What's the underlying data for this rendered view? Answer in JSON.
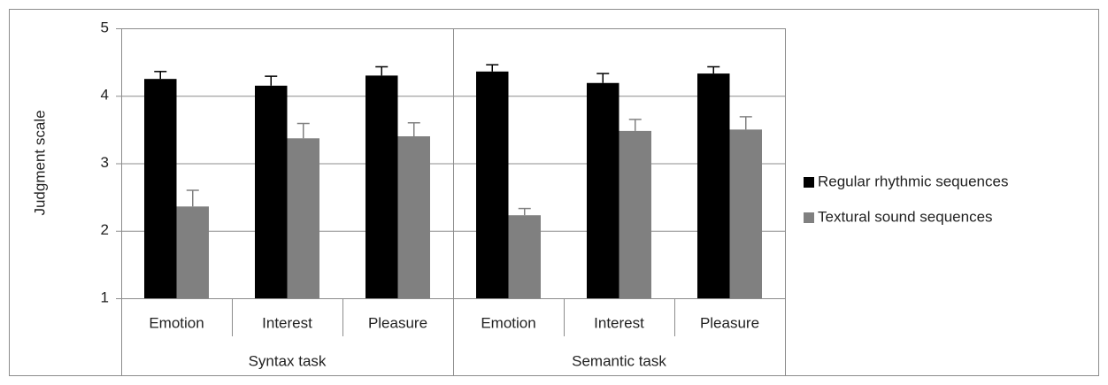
{
  "chart_data": {
    "type": "bar",
    "y_label": "Judgment scale",
    "groups": [
      "Syntax task",
      "Semantic task"
    ],
    "categories": [
      "Emotion",
      "Interest",
      "Pleasure",
      "Emotion",
      "Interest",
      "Pleasure"
    ],
    "series": [
      {
        "name": "Regular rhythmic sequences",
        "color": "#000000",
        "values": [
          4.25,
          4.15,
          4.3,
          4.36,
          4.19,
          4.33
        ],
        "errors": [
          0.11,
          0.14,
          0.13,
          0.1,
          0.14,
          0.1
        ]
      },
      {
        "name": "Textural sound sequences",
        "color": "#808080",
        "values": [
          2.36,
          3.37,
          3.4,
          2.23,
          3.48,
          3.5
        ],
        "errors": [
          0.24,
          0.22,
          0.2,
          0.1,
          0.17,
          0.19
        ]
      }
    ],
    "ylim": [
      1,
      5
    ],
    "yticks": [
      1,
      2,
      3,
      4,
      5
    ],
    "grid": true,
    "legend": "right"
  }
}
